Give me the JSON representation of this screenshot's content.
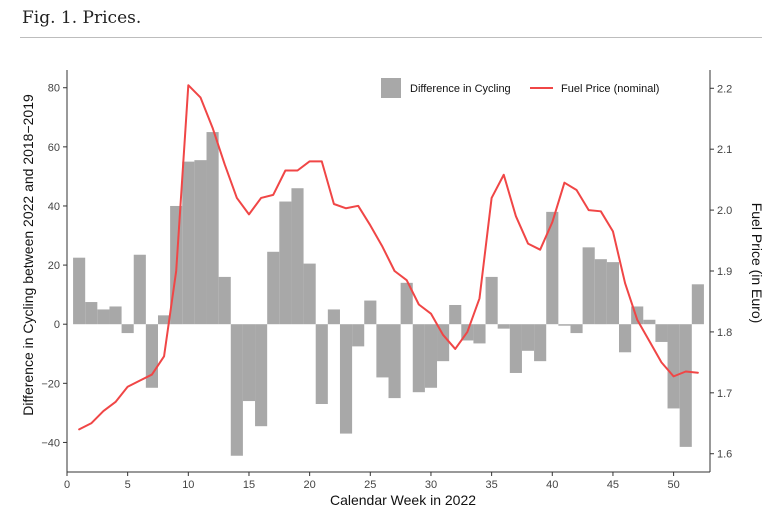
{
  "figure": {
    "caption": "Fig. 1. Prices."
  },
  "chart_data": {
    "type": "bar+line",
    "title": "",
    "xlabel": "Calendar Week in 2022",
    "ylabel": "Difference in Cycling between 2022 and 2018−2019",
    "y2label": "Fuel Price (in Euro)",
    "xlim": [
      0,
      53
    ],
    "ylim": [
      -50,
      86
    ],
    "y2lim": [
      1.57,
      2.23
    ],
    "x_ticks": [
      0,
      5,
      10,
      15,
      20,
      25,
      30,
      35,
      40,
      45,
      50
    ],
    "x_tick_labels": [
      "0",
      "5",
      "10",
      "15",
      "20",
      "25",
      "30",
      "35",
      "40",
      "45",
      "50"
    ],
    "y_ticks": [
      -40,
      -20,
      0,
      20,
      40,
      60,
      80
    ],
    "y_tick_labels": [
      "−40",
      "−20",
      "0",
      "20",
      "40",
      "60",
      "80"
    ],
    "y2_ticks": [
      1.6,
      1.7,
      1.8,
      1.9,
      2.0,
      2.1,
      2.2
    ],
    "y2_tick_labels": [
      "1.6",
      "1.7",
      "1.8",
      "1.9",
      "2.0",
      "2.1",
      "2.2"
    ],
    "legend": {
      "position": "top-right",
      "entries": [
        "Difference in Cycling",
        "Fuel Price (nominal)"
      ]
    },
    "colors": {
      "bars": "#a8a8a8",
      "line": "#f04646",
      "axis": "#333333"
    },
    "series": [
      {
        "name": "Difference in Cycling",
        "kind": "bar",
        "axis": "left",
        "x": [
          1,
          2,
          3,
          4,
          5,
          6,
          7,
          8,
          9,
          10,
          11,
          12,
          13,
          14,
          15,
          16,
          17,
          18,
          19,
          20,
          21,
          22,
          23,
          24,
          25,
          26,
          27,
          28,
          29,
          30,
          31,
          32,
          33,
          34,
          35,
          36,
          37,
          38,
          39,
          40,
          41,
          42,
          43,
          44,
          45,
          46,
          47,
          48,
          49,
          50,
          51,
          52
        ],
        "values": [
          22.5,
          7.5,
          5,
          6,
          -3,
          23.5,
          -21.5,
          3,
          40,
          55,
          55.5,
          65,
          16,
          -44.5,
          -26,
          -34.5,
          24.5,
          41.5,
          46,
          20.5,
          -27,
          5,
          -37,
          -7.5,
          8,
          -18,
          -25,
          14,
          -23,
          -21.5,
          -12.5,
          6.5,
          -5.5,
          -6.5,
          16,
          -1.5,
          -16.5,
          -9,
          -12.5,
          38,
          -0.5,
          -3,
          26,
          22,
          21,
          -9.5,
          6,
          1.5,
          -6,
          -28.5,
          -41.5,
          13.5
        ]
      },
      {
        "name": "Fuel Price (nominal)",
        "kind": "line",
        "axis": "right",
        "x": [
          1,
          2,
          3,
          4,
          5,
          6,
          7,
          8,
          9,
          10,
          11,
          12,
          13,
          14,
          15,
          16,
          17,
          18,
          19,
          20,
          21,
          22,
          23,
          24,
          25,
          26,
          27,
          28,
          29,
          30,
          31,
          32,
          33,
          34,
          35,
          36,
          37,
          38,
          39,
          40,
          41,
          42,
          43,
          44,
          45,
          46,
          47,
          48,
          49,
          50,
          51,
          52
        ],
        "values": [
          1.64,
          1.65,
          1.67,
          1.685,
          1.71,
          1.72,
          1.73,
          1.76,
          1.9,
          2.205,
          2.185,
          2.135,
          2.075,
          2.02,
          1.993,
          2.02,
          2.025,
          2.065,
          2.065,
          2.08,
          2.08,
          2.01,
          2.003,
          2.007,
          1.975,
          1.94,
          1.9,
          1.885,
          1.845,
          1.83,
          1.795,
          1.772,
          1.8,
          1.855,
          2.02,
          2.058,
          1.99,
          1.945,
          1.935,
          1.98,
          2.045,
          2.033,
          2.0,
          1.998,
          1.965,
          1.88,
          1.82,
          1.785,
          1.75,
          1.727,
          1.735,
          1.733
        ]
      }
    ]
  }
}
